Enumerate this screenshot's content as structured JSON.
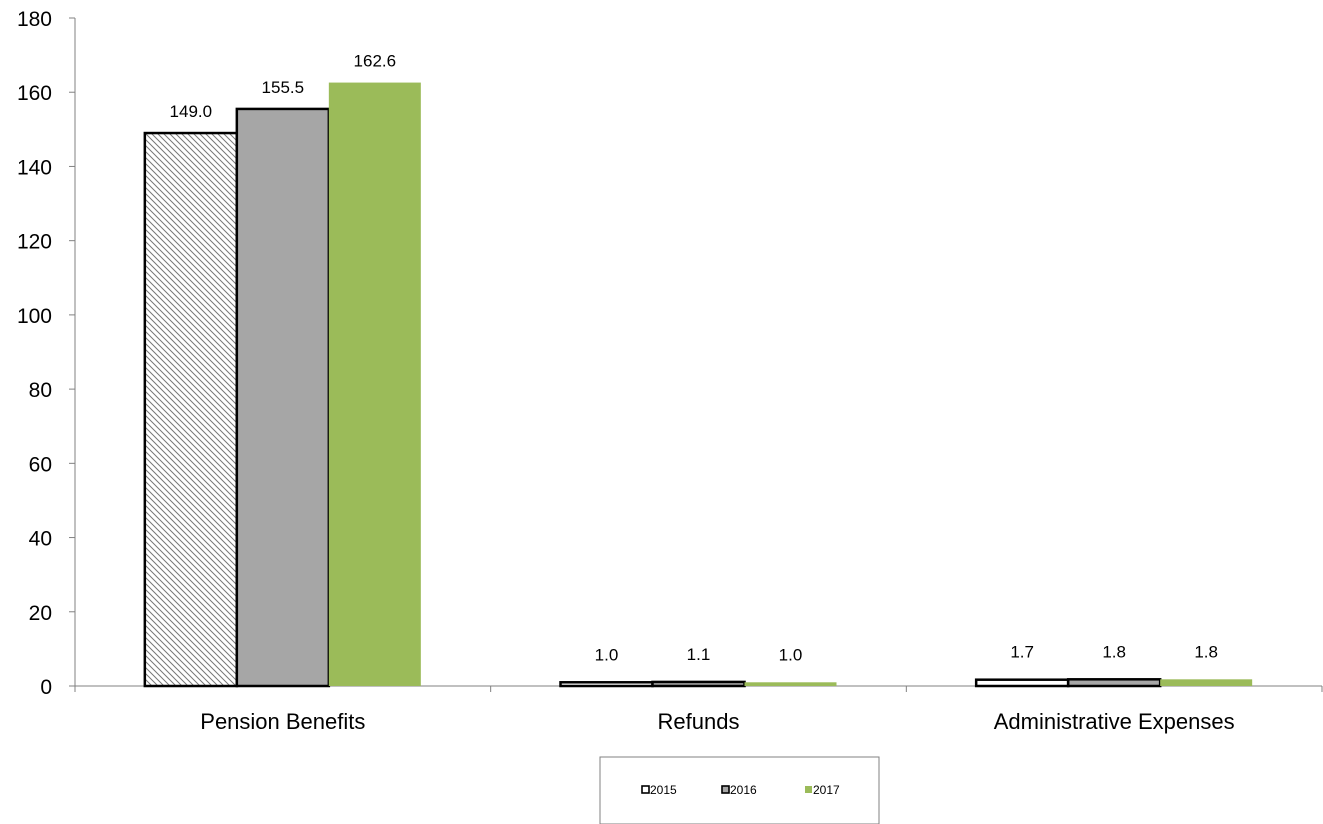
{
  "chart_data": {
    "type": "bar",
    "categories": [
      "Pension Benefits",
      "Refunds",
      "Administrative Expenses"
    ],
    "series": [
      {
        "name": "2015",
        "values": [
          149.0,
          1.0,
          1.7
        ],
        "labels": [
          "149.0",
          "1.0",
          "1.7"
        ],
        "fill": "hatch"
      },
      {
        "name": "2016",
        "values": [
          155.5,
          1.1,
          1.8
        ],
        "labels": [
          "155.5",
          "1.1",
          "1.8"
        ],
        "fill": "#a6a6a6"
      },
      {
        "name": "2017",
        "values": [
          162.6,
          1.0,
          1.8
        ],
        "labels": [
          "162.6",
          "1.0",
          "1.8"
        ],
        "fill": "#9bbb59"
      }
    ],
    "ylim": [
      0,
      180
    ],
    "yticks": [
      0,
      20,
      40,
      60,
      80,
      100,
      120,
      140,
      160,
      180
    ],
    "grid": false,
    "legend_position": "bottom-center"
  }
}
